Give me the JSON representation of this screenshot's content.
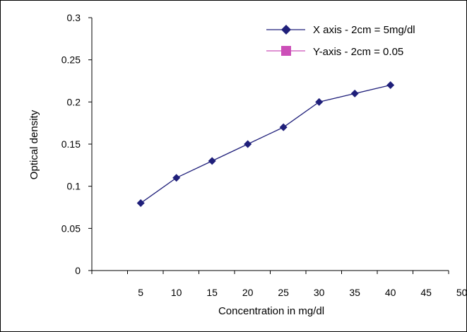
{
  "chart_data": {
    "type": "line",
    "xlabel": "Concentration in mg/dl",
    "ylabel": "Optical density",
    "xlim": [
      0,
      50
    ],
    "ylim": [
      0,
      0.3
    ],
    "x_ticks": [
      "5",
      "10",
      "15",
      "20",
      "25",
      "30",
      "35",
      "40",
      "45",
      "50"
    ],
    "y_ticks": [
      "0",
      "0.05",
      "0.1",
      "0.15",
      "0.2",
      "0.25",
      "0.3"
    ],
    "grid": false,
    "legend_position": "top-right",
    "series": [
      {
        "name": "X axis - 2cm = 5mg/dl",
        "color": "#1f1f7a",
        "marker": "diamond",
        "x": [
          5,
          10,
          15,
          20,
          25,
          30,
          35,
          40
        ],
        "y": [
          0.08,
          0.11,
          0.13,
          0.15,
          0.17,
          0.2,
          0.21,
          0.22
        ]
      },
      {
        "name": "Y-axis - 2cm = 0.05",
        "color": "#cc4fb8",
        "marker": "square",
        "x": [],
        "y": []
      }
    ]
  }
}
